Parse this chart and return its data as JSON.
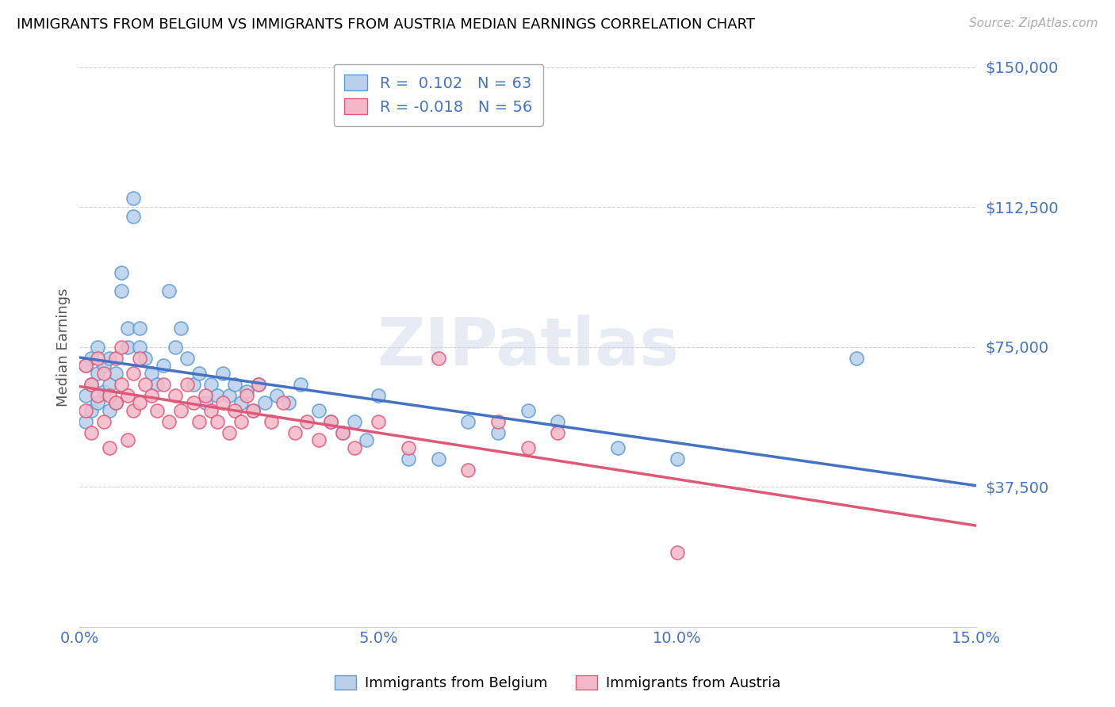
{
  "title": "IMMIGRANTS FROM BELGIUM VS IMMIGRANTS FROM AUSTRIA MEDIAN EARNINGS CORRELATION CHART",
  "source": "Source: ZipAtlas.com",
  "ylabel": "Median Earnings",
  "xlim": [
    0.0,
    0.15
  ],
  "ylim": [
    0,
    150000
  ],
  "yticks": [
    0,
    37500,
    75000,
    112500,
    150000
  ],
  "ytick_labels": [
    "",
    "$37,500",
    "$75,000",
    "$112,500",
    "$150,000"
  ],
  "xtick_labels": [
    "0.0%",
    "5.0%",
    "10.0%",
    "15.0%"
  ],
  "xticks": [
    0.0,
    0.05,
    0.1,
    0.15
  ],
  "belgium_R": 0.102,
  "belgium_N": 63,
  "austria_R": -0.018,
  "austria_N": 56,
  "belgium_color": "#b8d0ea",
  "belgium_edge_color": "#5b9bd5",
  "austria_color": "#f4b8c8",
  "austria_edge_color": "#e05878",
  "trend_belgium_color": "#4472c4",
  "trend_austria_color": "#e05878",
  "legend_label_belgium": "Immigrants from Belgium",
  "legend_label_austria": "Immigrants from Austria",
  "watermark": "ZIPatlas",
  "background_color": "#ffffff",
  "grid_color": "#cccccc",
  "title_color": "#000000",
  "axis_label_color": "#4472c4",
  "r_n_color": "#4472c4",
  "belgium_x": [
    0.001,
    0.001,
    0.001,
    0.002,
    0.002,
    0.002,
    0.003,
    0.003,
    0.003,
    0.004,
    0.004,
    0.005,
    0.005,
    0.005,
    0.006,
    0.006,
    0.007,
    0.007,
    0.008,
    0.008,
    0.009,
    0.009,
    0.01,
    0.01,
    0.011,
    0.012,
    0.013,
    0.014,
    0.015,
    0.016,
    0.017,
    0.018,
    0.019,
    0.02,
    0.021,
    0.022,
    0.023,
    0.024,
    0.025,
    0.026,
    0.027,
    0.028,
    0.029,
    0.03,
    0.031,
    0.033,
    0.035,
    0.037,
    0.04,
    0.042,
    0.044,
    0.046,
    0.048,
    0.05,
    0.055,
    0.06,
    0.065,
    0.07,
    0.075,
    0.08,
    0.09,
    0.1,
    0.13
  ],
  "belgium_y": [
    55000,
    62000,
    70000,
    58000,
    65000,
    72000,
    60000,
    68000,
    75000,
    63000,
    70000,
    58000,
    65000,
    72000,
    60000,
    68000,
    90000,
    95000,
    75000,
    80000,
    115000,
    110000,
    75000,
    80000,
    72000,
    68000,
    65000,
    70000,
    90000,
    75000,
    80000,
    72000,
    65000,
    68000,
    60000,
    65000,
    62000,
    68000,
    62000,
    65000,
    60000,
    63000,
    58000,
    65000,
    60000,
    62000,
    60000,
    65000,
    58000,
    55000,
    52000,
    55000,
    50000,
    62000,
    45000,
    45000,
    55000,
    52000,
    58000,
    55000,
    48000,
    45000,
    72000
  ],
  "austria_x": [
    0.001,
    0.001,
    0.002,
    0.002,
    0.003,
    0.003,
    0.004,
    0.004,
    0.005,
    0.005,
    0.006,
    0.006,
    0.007,
    0.007,
    0.008,
    0.008,
    0.009,
    0.009,
    0.01,
    0.01,
    0.011,
    0.012,
    0.013,
    0.014,
    0.015,
    0.016,
    0.017,
    0.018,
    0.019,
    0.02,
    0.021,
    0.022,
    0.023,
    0.024,
    0.025,
    0.026,
    0.027,
    0.028,
    0.029,
    0.03,
    0.032,
    0.034,
    0.036,
    0.038,
    0.04,
    0.042,
    0.044,
    0.046,
    0.05,
    0.055,
    0.06,
    0.065,
    0.07,
    0.075,
    0.08,
    0.1
  ],
  "austria_y": [
    58000,
    70000,
    52000,
    65000,
    62000,
    72000,
    55000,
    68000,
    48000,
    62000,
    60000,
    72000,
    65000,
    75000,
    50000,
    62000,
    58000,
    68000,
    60000,
    72000,
    65000,
    62000,
    58000,
    65000,
    55000,
    62000,
    58000,
    65000,
    60000,
    55000,
    62000,
    58000,
    55000,
    60000,
    52000,
    58000,
    55000,
    62000,
    58000,
    65000,
    55000,
    60000,
    52000,
    55000,
    50000,
    55000,
    52000,
    48000,
    55000,
    48000,
    72000,
    42000,
    55000,
    48000,
    52000,
    20000
  ]
}
